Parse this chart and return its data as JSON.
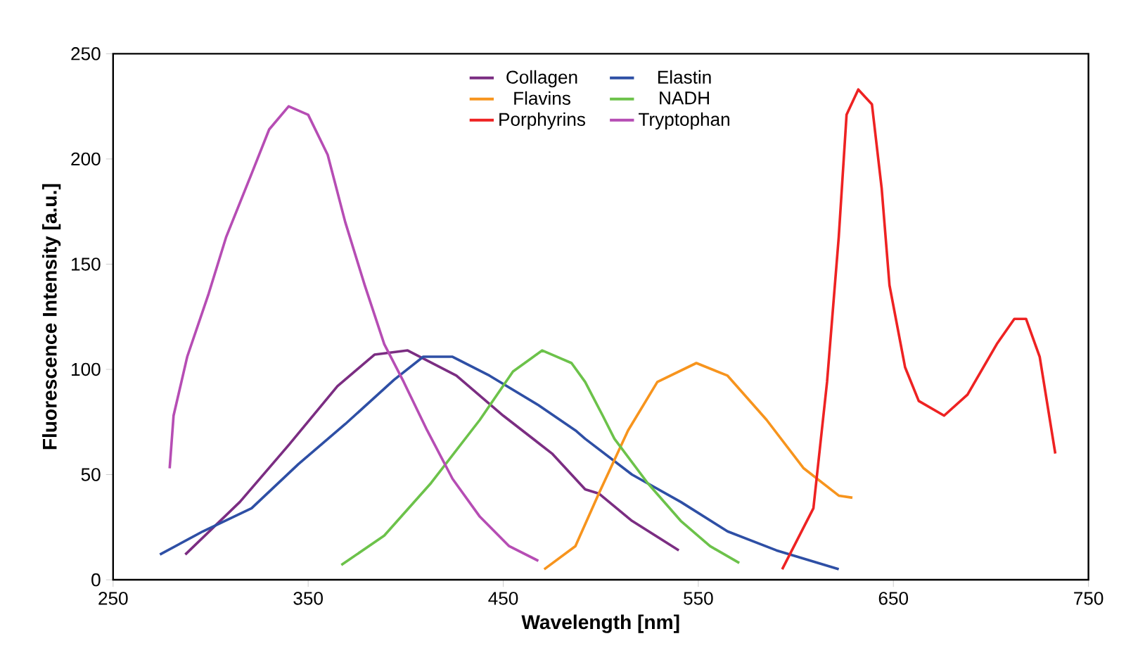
{
  "chart_data": {
    "type": "line",
    "xlabel": "Wavelength  [nm]",
    "ylabel": "Fluorescence Intensity  [a.u.]",
    "xlim": [
      250,
      750
    ],
    "ylim": [
      0,
      250
    ],
    "xticks": [
      250,
      350,
      450,
      550,
      650,
      750
    ],
    "yticks": [
      0,
      50,
      100,
      150,
      200,
      250
    ],
    "legend": "top",
    "grid": false,
    "marker": "none",
    "line_style": "solid",
    "series": [
      {
        "name": "Collagen",
        "color": "#7b2d82",
        "x": [
          287,
          315,
          340,
          365,
          384,
          401,
          426,
          450,
          475,
          492,
          499,
          516,
          540
        ],
        "values": [
          12,
          37,
          64,
          92,
          107,
          109,
          97,
          78,
          60,
          43,
          41,
          28,
          14
        ]
      },
      {
        "name": "Elastin",
        "color": "#2e4fa5",
        "x": [
          274,
          296,
          321,
          345,
          369,
          394,
          409,
          424,
          443,
          468,
          487,
          492,
          516,
          541,
          565,
          590,
          622
        ],
        "values": [
          12,
          23,
          34,
          55,
          74,
          95,
          106,
          106,
          97,
          83,
          71,
          67,
          50,
          37,
          23,
          14,
          5
        ]
      },
      {
        "name": "Flavins",
        "color": "#f7941d",
        "x": [
          471,
          487,
          499,
          514,
          529,
          549,
          565,
          585,
          604,
          622,
          629
        ],
        "values": [
          5,
          16,
          41,
          71,
          94,
          103,
          97,
          76,
          53,
          40,
          39
        ]
      },
      {
        "name": "NADH",
        "color": "#6cc24a",
        "x": [
          367,
          389,
          413,
          438,
          455,
          470,
          485,
          492,
          501,
          507,
          524,
          541,
          556,
          571
        ],
        "values": [
          7,
          21,
          46,
          76,
          99,
          109,
          103,
          94,
          78,
          67,
          46,
          28,
          16,
          8
        ]
      },
      {
        "name": "Porphyrins",
        "color": "#ee2222",
        "x": [
          593,
          609,
          616,
          622,
          626,
          632,
          639,
          644,
          648,
          656,
          663,
          676,
          688,
          703,
          712,
          718,
          725,
          733
        ],
        "values": [
          5,
          34,
          94,
          163,
          221,
          233,
          226,
          186,
          140,
          101,
          85,
          78,
          88,
          112,
          124,
          124,
          106,
          60
        ]
      },
      {
        "name": "Tryptophan",
        "color": "#b64db4",
        "x": [
          279,
          281,
          288,
          299,
          308,
          321,
          330,
          340,
          350,
          360,
          369,
          379,
          389,
          399,
          411,
          424,
          438,
          453,
          468
        ],
        "values": [
          53,
          78,
          106,
          136,
          163,
          193,
          214,
          225,
          221,
          202,
          170,
          140,
          112,
          94,
          71,
          48,
          30,
          16,
          9
        ]
      }
    ]
  }
}
